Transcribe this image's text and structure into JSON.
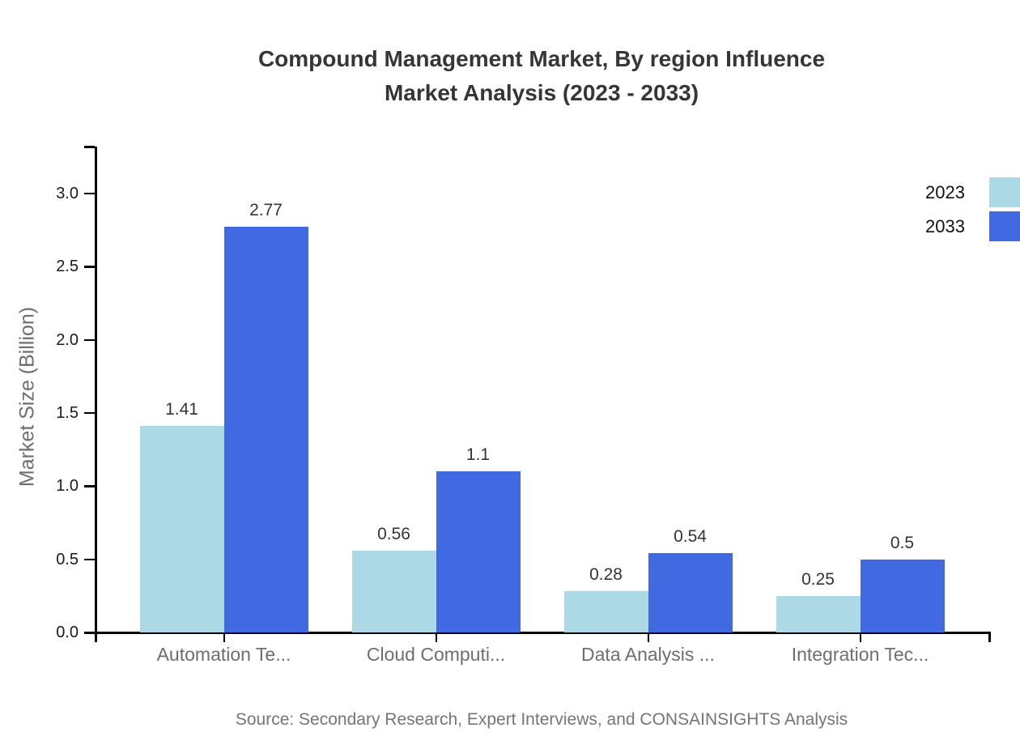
{
  "page": {
    "title_lines": [
      "Compound Management Market, By region Influence",
      "Market Analysis (2023 - 2033)"
    ],
    "source": "Source: Secondary Research, Expert Interviews, and CONSAINSIGHTS Analysis"
  },
  "colors": {
    "series_2023": "#ADD8E6",
    "series_2033": "#4169E1",
    "title_text": "#363636",
    "tick_text": "#1a1a1a",
    "muted_text": "#6e6e6e",
    "axis_line": "#000000"
  },
  "legend": {
    "position": "top-right",
    "items": [
      {
        "label": "2023",
        "color": "#ADD8E6"
      },
      {
        "label": "2033",
        "color": "#4169E1"
      }
    ]
  },
  "chart_data": {
    "type": "bar",
    "title": "Compound Management Market, By region Influence Market Analysis (2023 - 2033)",
    "categories": [
      "Automation Te...",
      "Cloud Computi...",
      "Data Analysis ...",
      "Integration Tec..."
    ],
    "series": [
      {
        "name": "2023",
        "color": "#ADD8E6",
        "values": [
          1.41,
          0.56,
          0.28,
          0.25
        ]
      },
      {
        "name": "2033",
        "color": "#4169E1",
        "values": [
          2.77,
          1.1,
          0.54,
          0.5
        ]
      }
    ],
    "xlabel": "",
    "ylabel": "Market Size (Billion)",
    "ylim": [
      0,
      3.3
    ],
    "yticks": [
      0.0,
      0.5,
      1.0,
      1.5,
      2.0,
      2.5,
      3.0
    ],
    "grid": false,
    "data_labels": true,
    "legend_position": "top-right",
    "source_note": "Source: Secondary Research, Expert Interviews, and CONSAINSIGHTS Analysis"
  }
}
